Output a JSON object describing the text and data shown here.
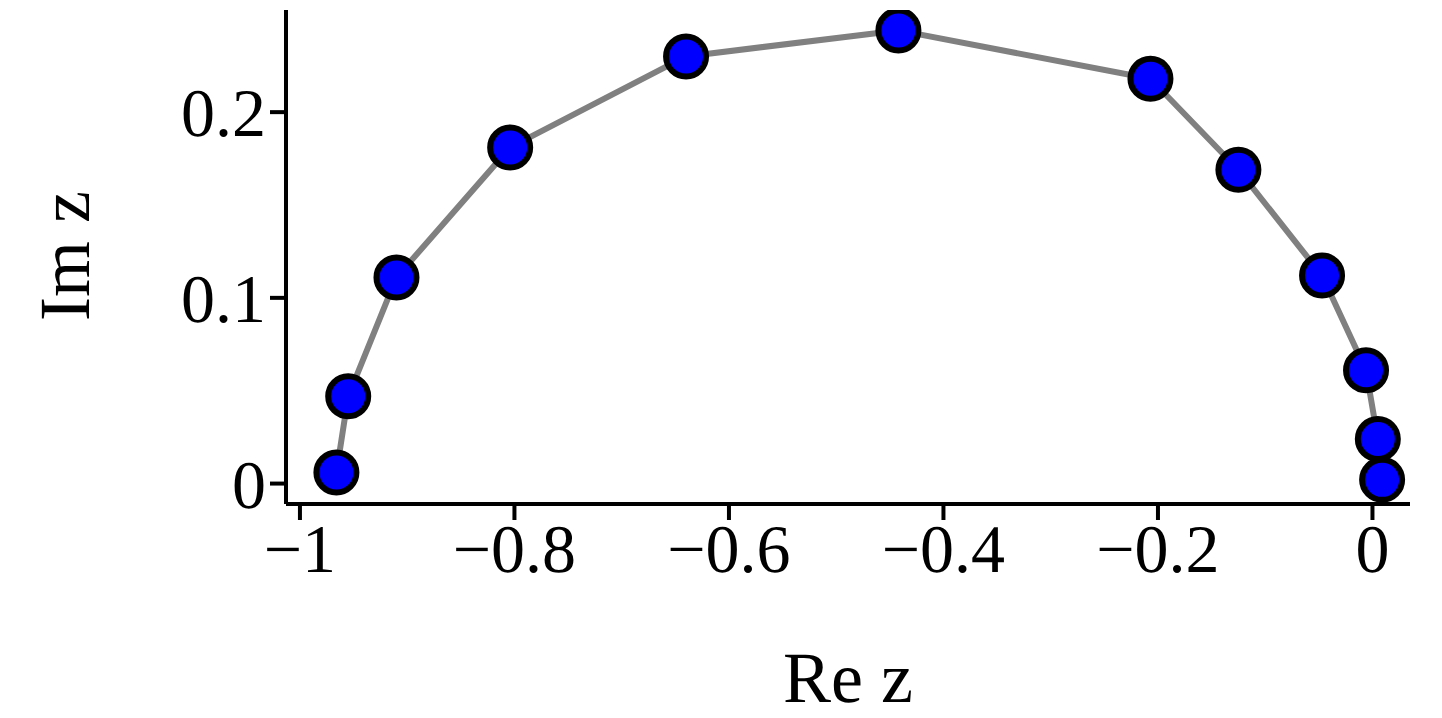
{
  "chart_data": {
    "type": "line",
    "xlabel": "Re z",
    "ylabel": "Im z",
    "x": [
      -0.966,
      -0.955,
      -0.91,
      -0.804,
      -0.64,
      -0.442,
      -0.207,
      -0.125,
      -0.047,
      -0.006,
      0.005,
      0.009
    ],
    "series": [
      {
        "color": "#808080",
        "values": [
          0.006,
          0.047,
          0.111,
          0.181,
          0.23,
          0.244,
          0.218,
          0.169,
          0.112,
          0.061,
          0.024,
          0.002
        ]
      }
    ],
    "marker": "circle",
    "line_style": "solid",
    "xlim": [
      -1.013,
      0.035
    ],
    "xticks": [
      {
        "value": -1,
        "label": "−1"
      },
      {
        "value": -0.8,
        "label": "−0.8"
      },
      {
        "value": -0.6,
        "label": "−0.6"
      },
      {
        "value": -0.4,
        "label": "−0.4"
      },
      {
        "value": -0.2,
        "label": "−0.2"
      },
      0
    ],
    "ylim": [
      -0.011,
      0.255
    ],
    "yticks": [
      0,
      0.1,
      0.2
    ],
    "grid": false,
    "legend": false
  }
}
